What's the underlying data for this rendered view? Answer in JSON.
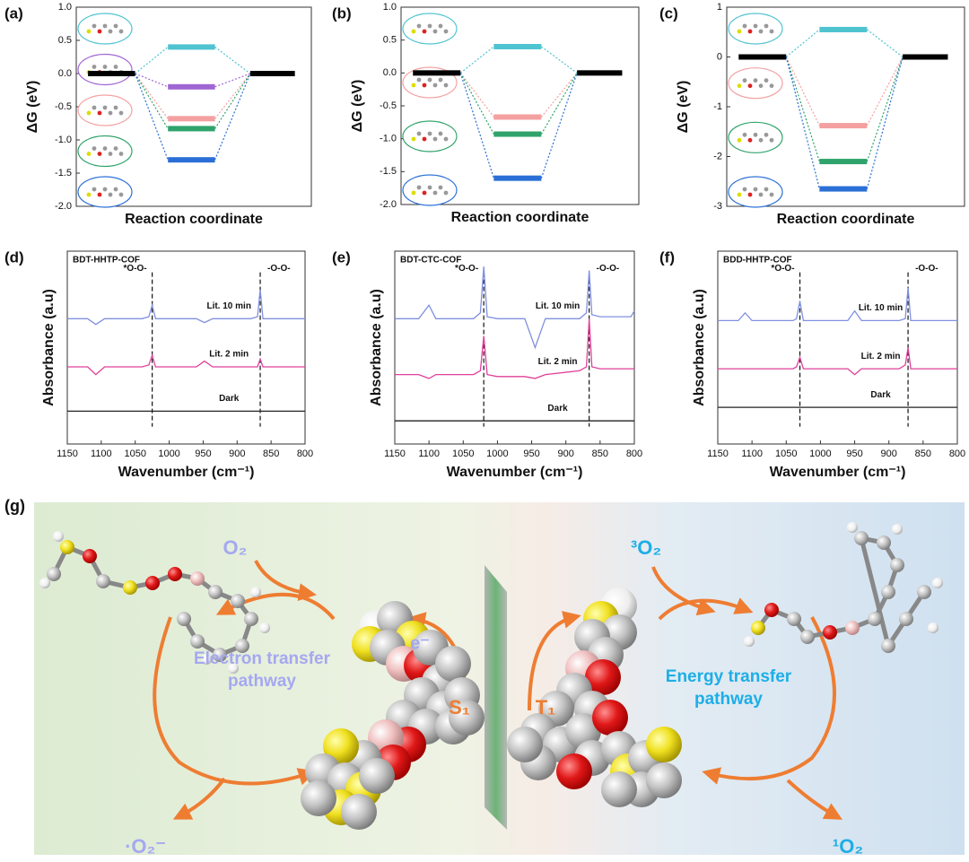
{
  "chart_data": [
    {
      "type": "energy_levels",
      "panel_label": "(a)",
      "ylabel": "ΔG (eV)",
      "xlabel": "Reaction coordinate",
      "ylim": [
        -2.0,
        1.0
      ],
      "yticks": [
        {
          "value": 1,
          "label": "1.0"
        },
        0.5,
        {
          "value": 0,
          "label": "0.0"
        },
        -0.5,
        {
          "value": -1,
          "label": "-1.0"
        },
        -1.5,
        {
          "value": -2,
          "label": "-2.0"
        }
      ],
      "initial": 0,
      "final": 0,
      "values": [
        0.4,
        -0.2,
        -0.68,
        -0.83,
        -1.3
      ],
      "colors": [
        "#4fc3d0",
        "#a066d3",
        "#f4a0a0",
        "#2fa36b",
        "#2a6fd6"
      ]
    },
    {
      "type": "energy_levels",
      "panel_label": "(b)",
      "ylabel": "ΔG (eV)",
      "xlabel": "Reaction coordinate",
      "ylim": [
        -2.0,
        1.0
      ],
      "yticks": [
        {
          "value": 1,
          "label": "1.0"
        },
        0.5,
        {
          "value": 0,
          "label": "0.0"
        },
        -0.5,
        {
          "value": -1,
          "label": "-1.0"
        },
        -1.5,
        {
          "value": -2,
          "label": "-2.0"
        }
      ],
      "initial": 0,
      "final": 0,
      "values": [
        0.4,
        -0.67,
        -0.93,
        -1.6
      ],
      "colors": [
        "#4fc3d0",
        "#f4a0a0",
        "#2fa36b",
        "#2a6fd6"
      ]
    },
    {
      "type": "energy_levels",
      "panel_label": "(c)",
      "ylabel": "ΔG (eV)",
      "xlabel": "Reaction coordinate",
      "ylim": [
        -3,
        1
      ],
      "yticks": [
        1,
        0,
        -1,
        -2,
        -3
      ],
      "initial": 0,
      "final": 0,
      "values": [
        0.55,
        -1.38,
        -2.1,
        -2.65
      ],
      "colors": [
        "#4fc3d0",
        "#f4a0a0",
        "#2fa36b",
        "#2a6fd6"
      ]
    },
    {
      "type": "line",
      "panel_label": "(d)",
      "title": "BDT-HHTP-COF",
      "ylabel": "Absorbance (a.u)",
      "xlabel": "Wavenumber (cm⁻¹)",
      "xlim": [
        1150,
        800
      ],
      "xticks": [
        1150,
        1100,
        1050,
        1000,
        950,
        900,
        850,
        800
      ],
      "ylim": [
        0,
        10
      ],
      "x": [
        1150,
        1120,
        1108,
        1095,
        1040,
        1030,
        1025,
        1020,
        1010,
        960,
        948,
        936,
        880,
        870,
        866,
        862,
        850,
        800
      ],
      "series": [
        {
          "name": "Lit. 10 min",
          "color": "#8090e0",
          "values": [
            6.5,
            6.5,
            6.2,
            6.5,
            6.5,
            6.6,
            7.2,
            6.5,
            6.5,
            6.5,
            6.3,
            6.5,
            6.5,
            6.6,
            8.0,
            6.5,
            6.5,
            6.5
          ]
        },
        {
          "name": "Lit. 2 min",
          "color": "#e0409a",
          "values": [
            4.0,
            4.0,
            3.6,
            4.0,
            4.0,
            4.1,
            4.6,
            4.0,
            4.0,
            4.0,
            4.3,
            4.0,
            4.0,
            4.0,
            4.4,
            4.0,
            4.0,
            4.0
          ]
        },
        {
          "name": "Dark",
          "color": "#222222",
          "values": [
            1.7,
            1.7,
            1.7,
            1.7,
            1.7,
            1.7,
            1.7,
            1.7,
            1.7,
            1.7,
            1.7,
            1.7,
            1.7,
            1.7,
            1.7,
            1.7,
            1.7,
            1.7
          ]
        }
      ],
      "markers": [
        {
          "x": 1025,
          "label": "*O-O-"
        },
        {
          "x": 866,
          "label": "-O-O-"
        }
      ]
    },
    {
      "type": "line",
      "panel_label": "(e)",
      "title": "BDT-CTC-COF",
      "ylabel": "Absorbance (a.u)",
      "xlabel": "Wavenumber (cm⁻¹)",
      "xlim": [
        1150,
        800
      ],
      "xticks": [
        1150,
        1100,
        1050,
        1000,
        950,
        900,
        850,
        800
      ],
      "ylim": [
        0,
        10
      ],
      "x": [
        1150,
        1115,
        1100,
        1090,
        1035,
        1025,
        1020,
        1015,
        1000,
        960,
        945,
        930,
        880,
        870,
        866,
        862,
        850,
        805,
        800
      ],
      "series": [
        {
          "name": "Lit. 10 min",
          "color": "#8090e0",
          "values": [
            6.5,
            6.5,
            7.2,
            6.5,
            6.5,
            6.8,
            9.2,
            6.6,
            6.5,
            6.5,
            5.0,
            6.5,
            6.5,
            6.8,
            9.0,
            6.7,
            6.6,
            6.6,
            6.9
          ]
        },
        {
          "name": "Lit. 2 min",
          "color": "#e0409a",
          "values": [
            3.6,
            3.6,
            3.4,
            3.6,
            3.6,
            3.8,
            5.6,
            3.6,
            3.5,
            3.5,
            3.4,
            3.6,
            3.8,
            4.0,
            6.5,
            4.0,
            3.9,
            3.9,
            3.9
          ]
        },
        {
          "name": "Dark",
          "color": "#222222",
          "values": [
            1.2,
            1.2,
            1.2,
            1.2,
            1.2,
            1.2,
            1.2,
            1.2,
            1.2,
            1.2,
            1.2,
            1.2,
            1.2,
            1.2,
            1.2,
            1.2,
            1.2,
            1.2,
            1.2
          ]
        }
      ],
      "markers": [
        {
          "x": 1020,
          "label": "*O-O-"
        },
        {
          "x": 866,
          "label": "-O-O-"
        }
      ]
    },
    {
      "type": "line",
      "panel_label": "(f)",
      "title": "BDD-HHTP-COF",
      "ylabel": "Absorbance (a.u)",
      "xlabel": "Wavenumber (cm⁻¹)",
      "xlim": [
        1150,
        800
      ],
      "xticks": [
        1150,
        1100,
        1050,
        1000,
        950,
        900,
        850,
        800
      ],
      "ylim": [
        0,
        10
      ],
      "x": [
        1150,
        1120,
        1110,
        1100,
        1040,
        1035,
        1030,
        1025,
        1010,
        960,
        950,
        940,
        885,
        876,
        872,
        868,
        855,
        800
      ],
      "series": [
        {
          "name": "Lit. 10 min",
          "color": "#8090e0",
          "values": [
            6.4,
            6.4,
            6.8,
            6.4,
            6.4,
            6.5,
            7.4,
            6.4,
            6.4,
            6.4,
            6.9,
            6.4,
            6.4,
            6.5,
            8.1,
            6.4,
            6.4,
            6.4
          ]
        },
        {
          "name": "Lit. 2 min",
          "color": "#e0409a",
          "values": [
            3.9,
            3.9,
            3.9,
            3.9,
            3.9,
            4.0,
            4.5,
            3.9,
            3.9,
            3.9,
            3.6,
            3.9,
            3.9,
            4.1,
            5.0,
            3.9,
            3.9,
            3.9
          ]
        },
        {
          "name": "Dark",
          "color": "#222222",
          "values": [
            1.9,
            1.9,
            1.9,
            1.9,
            1.9,
            1.9,
            1.9,
            1.9,
            1.9,
            1.9,
            1.9,
            1.9,
            1.9,
            1.9,
            1.9,
            1.9,
            1.9,
            1.9
          ]
        }
      ],
      "markers": [
        {
          "x": 1030,
          "label": "*O-O-"
        },
        {
          "x": 872,
          "label": "-O-O-"
        }
      ]
    }
  ],
  "illustration": {
    "panel_label": "(g)",
    "o2_left": "O₂",
    "electron": "e⁻",
    "electron_pathway": [
      "Electron  transfer",
      "pathway"
    ],
    "singlet_state": "S₁",
    "triplet_state": "T₁",
    "superoxide": "·O₂⁻",
    "triplet_oxygen": "³O₂",
    "energy_pathway": [
      "Energy transfer",
      "pathway"
    ],
    "singlet_oxygen": "¹O₂"
  }
}
